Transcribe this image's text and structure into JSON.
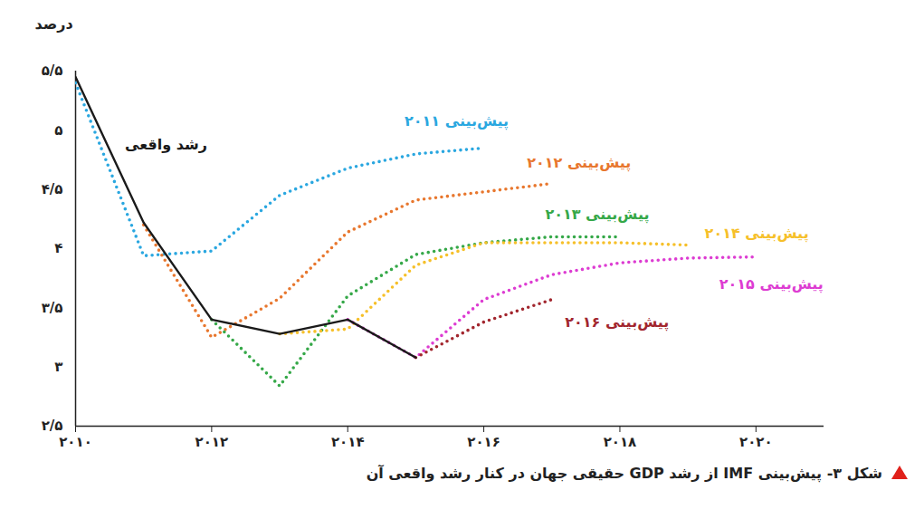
{
  "chart_data": {
    "type": "line",
    "title": "شکل ۳- پیش‌بینی IMF از رشد GDP حقیقی جهان در کنار رشد واقعی آن",
    "y_label": "درصد",
    "x": [
      2010,
      2011,
      2012,
      2013,
      2014,
      2015,
      2016,
      2017,
      2018,
      2019,
      2020
    ],
    "xlim": [
      2010,
      2021
    ],
    "xticks": [
      {
        "value": 2010,
        "label": "۲۰۱۰"
      },
      {
        "value": 2012,
        "label": "۲۰۱۲"
      },
      {
        "value": 2014,
        "label": "۲۰۱۴"
      },
      {
        "value": 2016,
        "label": "۲۰۱۶"
      },
      {
        "value": 2018,
        "label": "۲۰۱۸"
      },
      {
        "value": 2020,
        "label": "۲۰۲۰"
      }
    ],
    "ylim": [
      2.5,
      5.5
    ],
    "yticks": [
      {
        "value": 2.5,
        "label": "۲/۵"
      },
      {
        "value": 3,
        "label": "۳"
      },
      {
        "value": 3.5,
        "label": "۳/۵"
      },
      {
        "value": 4,
        "label": "۴"
      },
      {
        "value": 4.5,
        "label": "۴/۵"
      },
      {
        "value": 5,
        "label": "۵"
      },
      {
        "value": 5.5,
        "label": "۵/۵"
      }
    ],
    "grid": false,
    "series": [
      {
        "name": "رشد واقعی",
        "color": "#1a1a1a",
        "line_style": "solid",
        "values": [
          5.45,
          4.22,
          3.4,
          3.28,
          3.4,
          3.08,
          null,
          null,
          null,
          null,
          null
        ]
      },
      {
        "name": "پیش‌بینی ۲۰۱۱",
        "color": "#2aa7e0",
        "line_style": "dotted",
        "values": [
          5.4,
          3.94,
          3.98,
          4.45,
          4.68,
          4.8,
          4.85,
          null,
          null,
          null,
          null
        ]
      },
      {
        "name": "پیش‌بینی ۲۰۱۲",
        "color": "#e8772e",
        "line_style": "dotted",
        "values": [
          null,
          4.2,
          3.25,
          3.58,
          4.14,
          4.41,
          4.48,
          4.55,
          null,
          null,
          null
        ]
      },
      {
        "name": "پیش‌بینی ۲۰۱۳",
        "color": "#35a848",
        "line_style": "dotted",
        "values": [
          null,
          null,
          3.4,
          2.84,
          3.6,
          3.95,
          4.05,
          4.1,
          4.1,
          null,
          null
        ]
      },
      {
        "name": "پیش‌بینی ۲۰۱۴",
        "color": "#f6c02a",
        "line_style": "dotted",
        "values": [
          null,
          null,
          null,
          3.28,
          3.32,
          3.86,
          4.05,
          4.05,
          4.05,
          4.03,
          null
        ]
      },
      {
        "name": "پیش‌بینی ۲۰۱۵",
        "color": "#dd3cd2",
        "line_style": "dotted",
        "values": [
          null,
          null,
          null,
          null,
          3.4,
          3.08,
          3.57,
          3.78,
          3.88,
          3.92,
          3.93
        ]
      },
      {
        "name": "پیش‌بینی ۲۰۱۶",
        "color": "#a2262e",
        "line_style": "dotted",
        "values": [
          null,
          null,
          null,
          null,
          null,
          3.08,
          3.38,
          3.57,
          null,
          null,
          null
        ]
      }
    ]
  }
}
